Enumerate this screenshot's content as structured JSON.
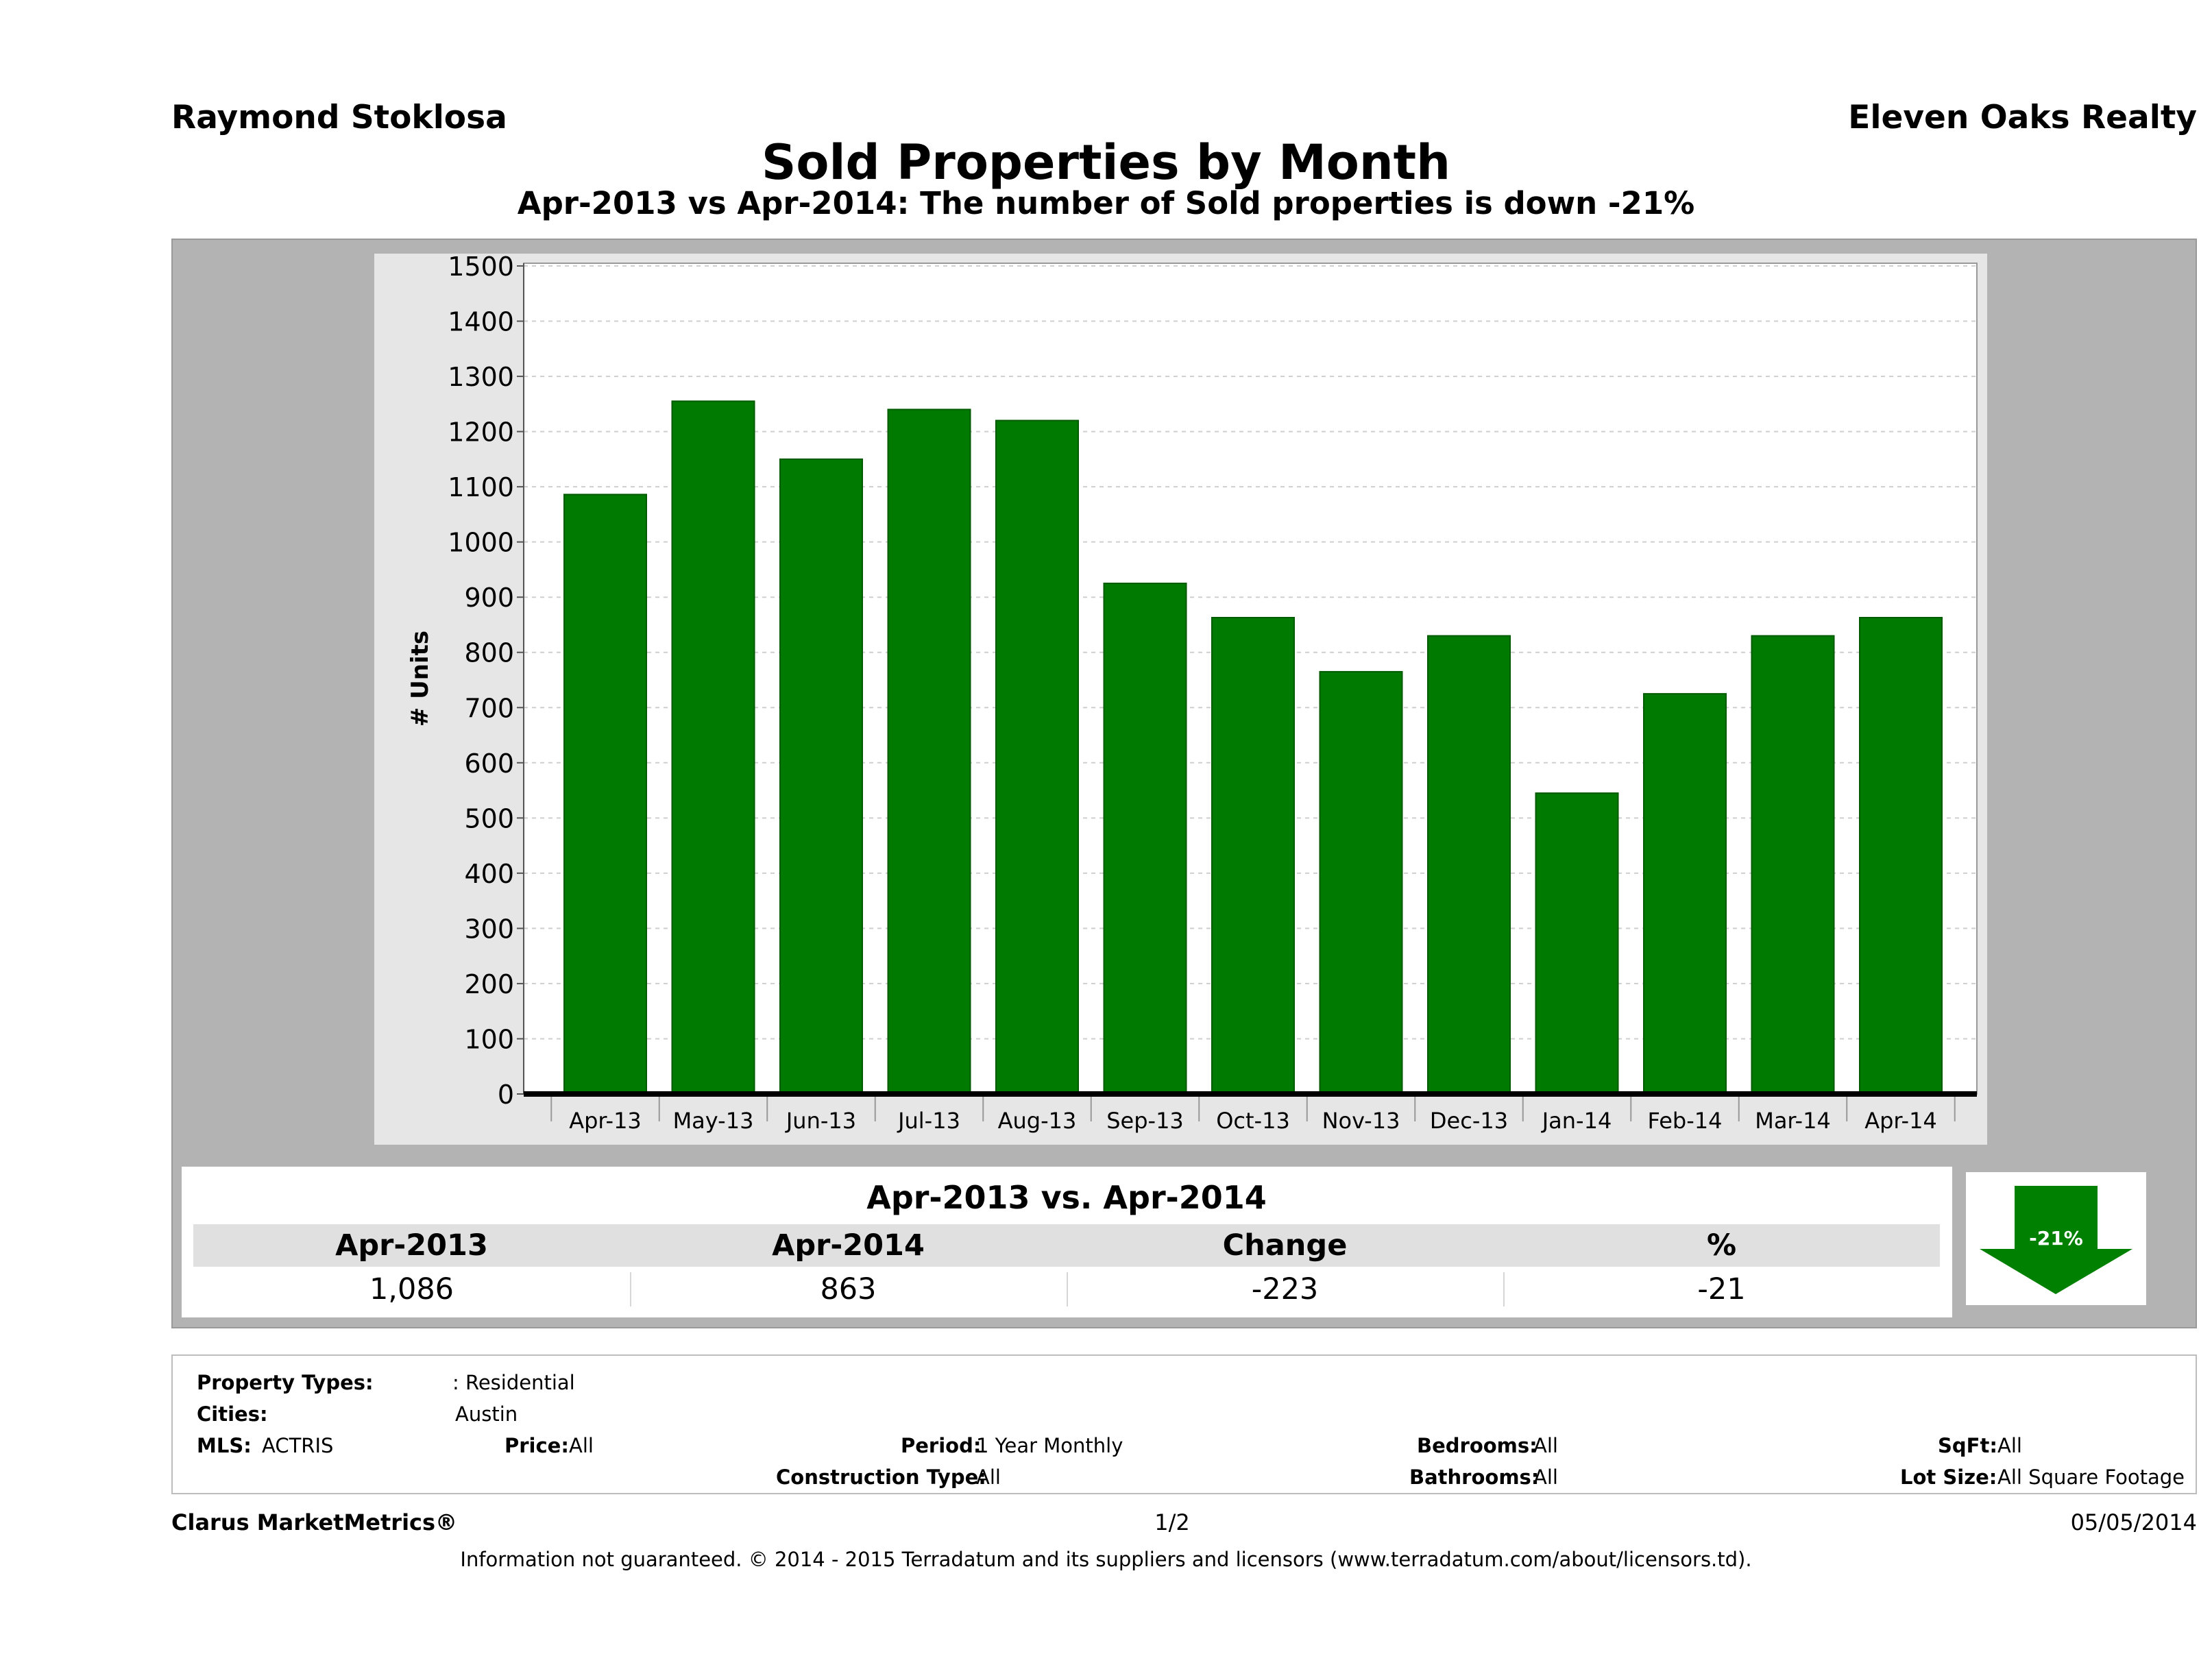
{
  "header": {
    "agent": "Raymond Stoklosa",
    "company": "Eleven Oaks Realty"
  },
  "chart_data": {
    "type": "bar",
    "title": "Sold Properties by Month",
    "subtitle": "Apr-2013 vs Apr-2014: The number of Sold  properties is down -21%",
    "ylabel": "# Units",
    "xlabel": "",
    "ylim": [
      0,
      1500
    ],
    "yticks": [
      0,
      100,
      200,
      300,
      400,
      500,
      600,
      700,
      800,
      900,
      1000,
      1100,
      1200,
      1300,
      1400,
      1500
    ],
    "categories": [
      "Apr-13",
      "May-13",
      "Jun-13",
      "Jul-13",
      "Aug-13",
      "Sep-13",
      "Oct-13",
      "Nov-13",
      "Dec-13",
      "Jan-14",
      "Feb-14",
      "Mar-14",
      "Apr-14"
    ],
    "values": [
      1086,
      1255,
      1150,
      1240,
      1220,
      925,
      863,
      765,
      830,
      545,
      725,
      830,
      863
    ],
    "bar_color": "#007a00",
    "grid": true
  },
  "comparison": {
    "title": "Apr-2013 vs. Apr-2014",
    "labels": [
      "Apr-2013",
      "Apr-2014",
      "Change",
      "%"
    ],
    "values": [
      "1,086",
      "863",
      "-223",
      "-21"
    ],
    "badge": "-21%",
    "trend_color": "#008000"
  },
  "criteria": {
    "property_types_label": "Property Types:",
    "property_types_value": ": Residential",
    "cities_label": "Cities:",
    "cities_value": "Austin",
    "mls_label": "MLS:",
    "mls_value": "ACTRIS",
    "price_label": "Price:",
    "price_value": "All",
    "period_label": "Period:",
    "period_value": "1 Year Monthly",
    "construction_label": "Construction Type:",
    "construction_value": "All",
    "bedrooms_label": "Bedrooms:",
    "bedrooms_value": "All",
    "bathrooms_label": "Bathrooms:",
    "bathrooms_value": "All",
    "sqft_label": "SqFt:",
    "sqft_value": "All",
    "lot_label": "Lot Size:",
    "lot_value": "All Square Footage"
  },
  "footer": {
    "brand": "Clarus MarketMetrics®",
    "page": "1/2",
    "date": "05/05/2014",
    "disclaimer": "Information not guaranteed. © 2014 - 2015 Terradatum and its suppliers and licensors (www.terradatum.com/about/licensors.td)."
  }
}
